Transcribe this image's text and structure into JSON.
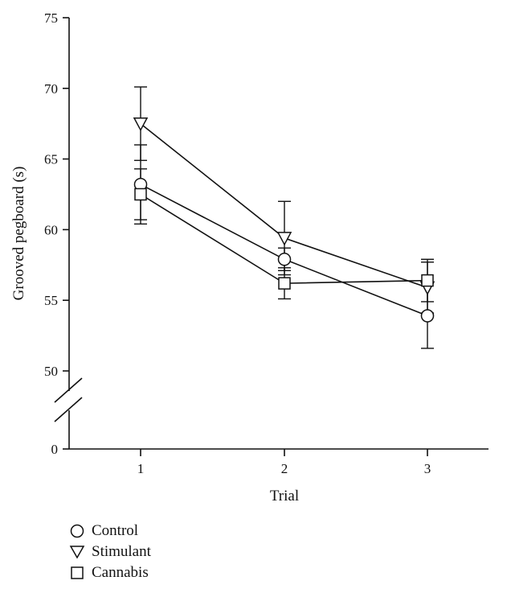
{
  "chart_data": {
    "type": "line",
    "xlabel": "Trial",
    "ylabel": "Grooved pegboard (s)",
    "x": [
      1,
      2,
      3
    ],
    "x_ticks": [
      "1",
      "2",
      "3"
    ],
    "y_ticks": [
      "0",
      "50",
      "55",
      "60",
      "65",
      "70",
      "75"
    ],
    "ylim": [
      50,
      75
    ],
    "y_axis_break": true,
    "grid": false,
    "legend_position": "bottom-left",
    "series": [
      {
        "name": "Control",
        "marker": "circle",
        "values": [
          63.2,
          57.9,
          53.9
        ],
        "errors": [
          2.8,
          0.8,
          2.3
        ]
      },
      {
        "name": "Stimulant",
        "marker": "triangle-down",
        "values": [
          67.5,
          59.4,
          55.9
        ],
        "errors": [
          2.6,
          2.6,
          1.8
        ]
      },
      {
        "name": "Cannabis",
        "marker": "square",
        "values": [
          62.5,
          56.2,
          56.4
        ],
        "errors": [
          1.8,
          1.1,
          1.5
        ]
      }
    ]
  }
}
